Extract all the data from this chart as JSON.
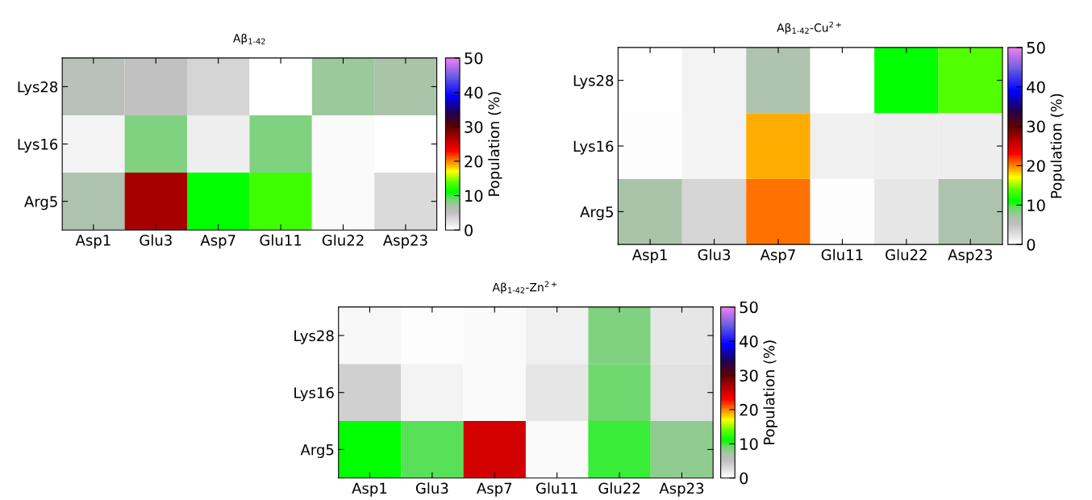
{
  "chart_data": [
    {
      "type": "heatmap",
      "title": "Aβ$_{1-42}$",
      "categories": [
        "Asp1",
        "Glu3",
        "Asp7",
        "Glu11",
        "Glu22",
        "Asp23"
      ],
      "y_categories": [
        "Lys28",
        "Lys16",
        "Arg5"
      ],
      "cells": [
        [
          5.5,
          5,
          3.5,
          0,
          7.5,
          7
        ],
        [
          1,
          8.5,
          1.5,
          8.5,
          0.5,
          0
        ],
        [
          6.5,
          27,
          11,
          13,
          0.5,
          3
        ]
      ],
      "clim": [
        0,
        50
      ],
      "cticks": [
        0,
        10,
        20,
        30,
        40,
        50
      ],
      "clabel": "Population (%)"
    },
    {
      "type": "heatmap",
      "title": "Aβ$_{1-42}$-Cu$^{2+}$",
      "categories": [
        "Asp1",
        "Glu3",
        "Asp7",
        "Glu11",
        "Glu22",
        "Asp23"
      ],
      "y_categories": [
        "Lys28",
        "Lys16",
        "Arg5"
      ],
      "cells": [
        [
          0,
          1,
          6.5,
          0,
          11,
          13.5
        ],
        [
          0.3,
          1,
          19,
          1.2,
          1.5,
          1.5
        ],
        [
          7,
          3.5,
          20.5,
          0.3,
          2,
          6.5
        ]
      ],
      "clim": [
        0,
        50
      ],
      "cticks": [
        0,
        10,
        20,
        30,
        40,
        50
      ],
      "clabel": "Population (%)"
    },
    {
      "type": "heatmap",
      "title": "Aβ$_{1-42}$-Zn$^{2+}$",
      "categories": [
        "Asp1",
        "Glu3",
        "Asp7",
        "Glu11",
        "Glu22",
        "Asp23"
      ],
      "y_categories": [
        "Lys28",
        "Lys16",
        "Arg5"
      ],
      "cells": [
        [
          0.7,
          0.2,
          0.5,
          1.2,
          8.5,
          2
        ],
        [
          3.8,
          1,
          0.5,
          2,
          9,
          2.5
        ],
        [
          11,
          9.5,
          25,
          0.5,
          10,
          8
        ]
      ],
      "clim": [
        0,
        50
      ],
      "cticks": [
        0,
        10,
        20,
        30,
        40,
        50
      ],
      "clabel": "Population (%)"
    }
  ]
}
